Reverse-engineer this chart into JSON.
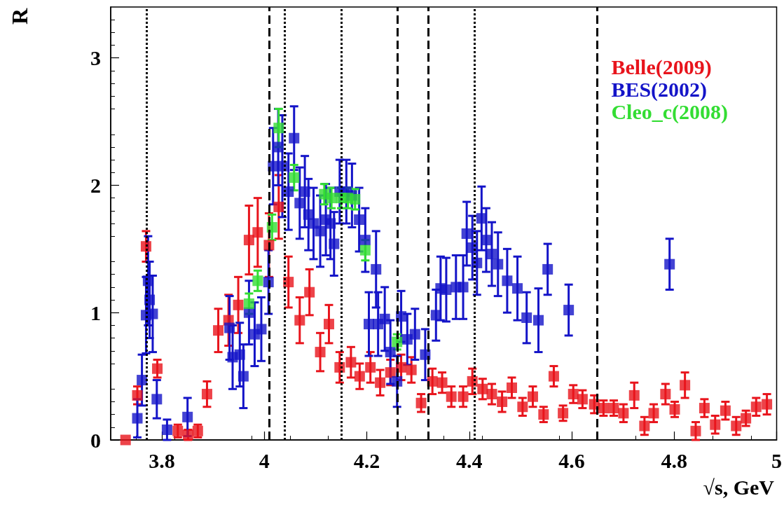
{
  "chart_data": {
    "type": "scatter",
    "xlabel": "√s, GeV",
    "ylabel": "R",
    "xlim": [
      3.7,
      5.0
    ],
    "xticks": [
      3.8,
      4,
      4.2,
      4.4,
      4.6,
      4.8,
      5
    ],
    "ylim": [
      0,
      3.4
    ],
    "yticks": [
      0,
      1,
      2,
      3
    ],
    "grid": false,
    "legend": "top right",
    "marker": "square",
    "series": [
      {
        "name": "Belle(2009)",
        "color": "#e8141c",
        "x": [
          3.729,
          3.752,
          3.769,
          3.791,
          3.831,
          3.851,
          3.87,
          3.888,
          3.91,
          3.93,
          3.949,
          3.97,
          3.987,
          4.009,
          4.028,
          4.047,
          4.069,
          4.088,
          4.109,
          4.126,
          4.147,
          4.169,
          4.186,
          4.207,
          4.226,
          4.246,
          4.267,
          4.287,
          4.306,
          4.328,
          4.347,
          4.365,
          4.388,
          4.406,
          4.426,
          4.444,
          4.464,
          4.483,
          4.504,
          4.524,
          4.545,
          4.565,
          4.583,
          4.603,
          4.621,
          4.644,
          4.662,
          4.682,
          4.701,
          4.722,
          4.742,
          4.76,
          4.783,
          4.801,
          4.821,
          4.842,
          4.859,
          4.88,
          4.9,
          4.921,
          4.94,
          4.96,
          4.981
        ],
        "values": [
          0.0,
          0.35,
          1.52,
          0.56,
          0.07,
          0.04,
          0.07,
          0.36,
          0.86,
          0.94,
          1.06,
          1.57,
          1.63,
          1.53,
          1.83,
          1.24,
          0.94,
          1.16,
          0.69,
          0.91,
          0.57,
          0.61,
          0.5,
          0.57,
          0.45,
          0.53,
          0.57,
          0.55,
          0.29,
          0.46,
          0.45,
          0.34,
          0.34,
          0.46,
          0.4,
          0.36,
          0.3,
          0.41,
          0.26,
          0.34,
          0.2,
          0.5,
          0.21,
          0.36,
          0.32,
          0.28,
          0.25,
          0.25,
          0.21,
          0.35,
          0.11,
          0.21,
          0.36,
          0.24,
          0.43,
          0.07,
          0.25,
          0.12,
          0.23,
          0.11,
          0.17,
          0.26,
          0.28
        ],
        "errors": [
          null,
          0.07,
          0.12,
          0.07,
          0.05,
          0.04,
          0.05,
          0.1,
          0.17,
          0.2,
          0.22,
          0.27,
          0.27,
          0.25,
          0.25,
          0.2,
          0.18,
          0.18,
          0.15,
          0.15,
          0.12,
          0.12,
          0.1,
          0.12,
          0.1,
          0.1,
          0.1,
          0.1,
          0.07,
          0.1,
          0.08,
          0.08,
          0.08,
          0.1,
          0.08,
          0.08,
          0.08,
          0.08,
          0.07,
          0.08,
          0.06,
          0.08,
          0.06,
          0.07,
          0.07,
          0.07,
          0.06,
          0.06,
          0.07,
          0.1,
          0.07,
          0.07,
          0.08,
          0.06,
          0.1,
          0.07,
          0.07,
          0.07,
          0.07,
          0.07,
          0.06,
          0.07,
          0.08
        ]
      },
      {
        "name": "BES(2002)",
        "color": "#1414c8",
        "x": [
          3.752,
          3.761,
          3.769,
          3.773,
          3.776,
          3.782,
          3.79,
          3.81,
          3.85,
          3.932,
          3.938,
          3.952,
          3.959,
          3.97,
          3.981,
          3.994,
          4.008,
          4.017,
          4.027,
          4.035,
          4.047,
          4.058,
          4.069,
          4.079,
          4.086,
          4.096,
          4.109,
          4.12,
          4.129,
          4.136,
          4.147,
          4.16,
          4.171,
          4.185,
          4.197,
          4.204,
          4.218,
          4.222,
          4.235,
          4.246,
          4.259,
          4.267,
          4.279,
          4.294,
          4.314,
          4.335,
          4.344,
          4.355,
          4.374,
          4.388,
          4.395,
          4.406,
          4.415,
          4.424,
          4.433,
          4.444,
          4.456,
          4.474,
          4.494,
          4.512,
          4.535,
          4.553,
          4.594,
          4.791
        ],
        "values": [
          0.17,
          0.47,
          0.98,
          1.25,
          1.1,
          0.99,
          0.32,
          0.08,
          0.18,
          0.88,
          0.65,
          0.67,
          0.5,
          1.0,
          0.83,
          0.87,
          1.24,
          2.15,
          2.3,
          2.15,
          1.95,
          2.37,
          1.86,
          1.95,
          1.77,
          1.7,
          1.64,
          1.73,
          1.7,
          1.54,
          1.95,
          1.95,
          1.92,
          1.73,
          1.57,
          0.91,
          1.34,
          0.91,
          0.95,
          0.69,
          0.46,
          0.97,
          0.79,
          0.83,
          0.67,
          0.98,
          1.19,
          1.18,
          1.2,
          1.2,
          1.62,
          1.51,
          1.39,
          1.74,
          1.57,
          1.46,
          1.38,
          1.25,
          1.19,
          0.96,
          0.94,
          1.34,
          1.02,
          1.38
        ],
        "errors": [
          0.15,
          0.2,
          0.3,
          0.35,
          0.3,
          0.3,
          0.15,
          0.08,
          0.15,
          0.25,
          0.25,
          0.25,
          0.25,
          0.25,
          0.25,
          0.25,
          0.25,
          0.3,
          0.3,
          0.4,
          0.3,
          0.25,
          0.28,
          0.28,
          0.28,
          0.28,
          0.28,
          0.28,
          0.28,
          0.25,
          0.25,
          0.25,
          0.25,
          0.25,
          0.25,
          0.25,
          0.3,
          0.25,
          0.25,
          0.25,
          0.2,
          0.2,
          0.2,
          0.2,
          0.2,
          0.2,
          0.25,
          0.25,
          0.25,
          0.25,
          0.25,
          0.25,
          0.25,
          0.25,
          0.25,
          0.25,
          0.25,
          0.25,
          0.25,
          0.2,
          0.25,
          0.2,
          0.2,
          0.2
        ]
      },
      {
        "name": "Cleo_c(2008)",
        "color": "#33dd33",
        "x": [
          3.97,
          3.987,
          4.015,
          4.028,
          4.058,
          4.117,
          4.131,
          4.15,
          4.163,
          4.177,
          4.197,
          4.259
        ],
        "values": [
          1.07,
          1.25,
          1.67,
          2.45,
          2.06,
          1.93,
          1.9,
          1.9,
          1.9,
          1.89,
          1.49,
          0.77
        ],
        "errors": [
          0.08,
          0.08,
          0.1,
          0.15,
          0.1,
          0.08,
          0.08,
          0.08,
          0.08,
          0.08,
          0.08,
          0.06
        ]
      }
    ],
    "ref_lines": [
      {
        "axis": "x",
        "value": 3.772,
        "line_style": "dotted"
      },
      {
        "axis": "x",
        "value": 4.007,
        "line_style": "dashed"
      },
      {
        "axis": "x",
        "value": 4.038,
        "line_style": "dotted"
      },
      {
        "axis": "x",
        "value": 4.15,
        "line_style": "dotted"
      },
      {
        "axis": "x",
        "value": 4.259,
        "line_style": "dashed"
      },
      {
        "axis": "x",
        "value": 4.32,
        "line_style": "dashed"
      },
      {
        "axis": "x",
        "value": 4.414,
        "line_style": "dotted"
      },
      {
        "axis": "x",
        "value": 4.652,
        "line_style": "dashed"
      }
    ]
  }
}
